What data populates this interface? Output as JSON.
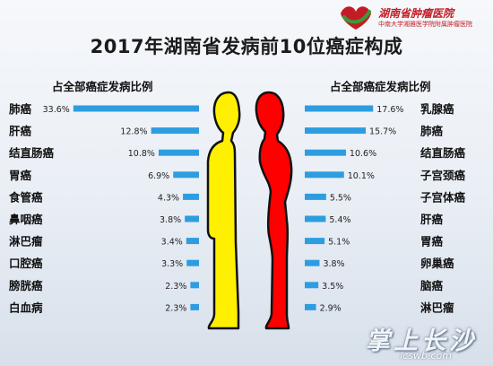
{
  "logo": {
    "name": "湖南省肿瘤医院",
    "subtitle": "中南大学湘雅医学院附属肿瘤医院",
    "colors": {
      "red": "#c21d25",
      "green": "#3a9a3a"
    }
  },
  "watermark": {
    "main": "掌上长沙",
    "sub": "icswb.com"
  },
  "colors": {
    "bar": "#2d9de0",
    "male_figure": "#ffef00",
    "female_figure": "#ff0000",
    "outline": "#111111"
  },
  "chart_data": [
    {
      "type": "bar",
      "orientation": "horizontal",
      "title": "2017年湖南省发病前10位癌症构成",
      "subtitle": "占全部癌症发病比例",
      "group": "male",
      "categories": [
        "肺癌",
        "肝癌",
        "结直肠癌",
        "胃癌",
        "食管癌",
        "鼻咽癌",
        "淋巴瘤",
        "口腔癌",
        "膀胱癌",
        "白血病"
      ],
      "values": [
        33.6,
        12.8,
        10.8,
        6.9,
        4.3,
        3.8,
        3.4,
        3.3,
        2.3,
        2.3
      ],
      "labels": [
        "33.6%",
        "12.8%",
        "10.8%",
        "6.9%",
        "4.3%",
        "3.8%",
        "3.4%",
        "3.3%",
        "2.3%",
        "2.3%"
      ],
      "xlim": [
        0,
        35
      ]
    },
    {
      "type": "bar",
      "orientation": "horizontal",
      "subtitle": "占全部癌症发病比例",
      "group": "female",
      "categories": [
        "乳腺癌",
        "肺癌",
        "结直肠癌",
        "子宫颈癌",
        "子宫体癌",
        "肝癌",
        "胃癌",
        "卵巢癌",
        "脑癌",
        "淋巴瘤"
      ],
      "values": [
        17.6,
        15.7,
        10.6,
        10.1,
        5.5,
        5.4,
        5.1,
        3.8,
        3.5,
        2.9
      ],
      "labels": [
        "17.6%",
        "15.7%",
        "10.6%",
        "10.1%",
        "5.5%",
        "5.4%",
        "5.1%",
        "3.8%",
        "3.5%",
        "2.9%"
      ],
      "xlim": [
        0,
        18
      ]
    }
  ]
}
